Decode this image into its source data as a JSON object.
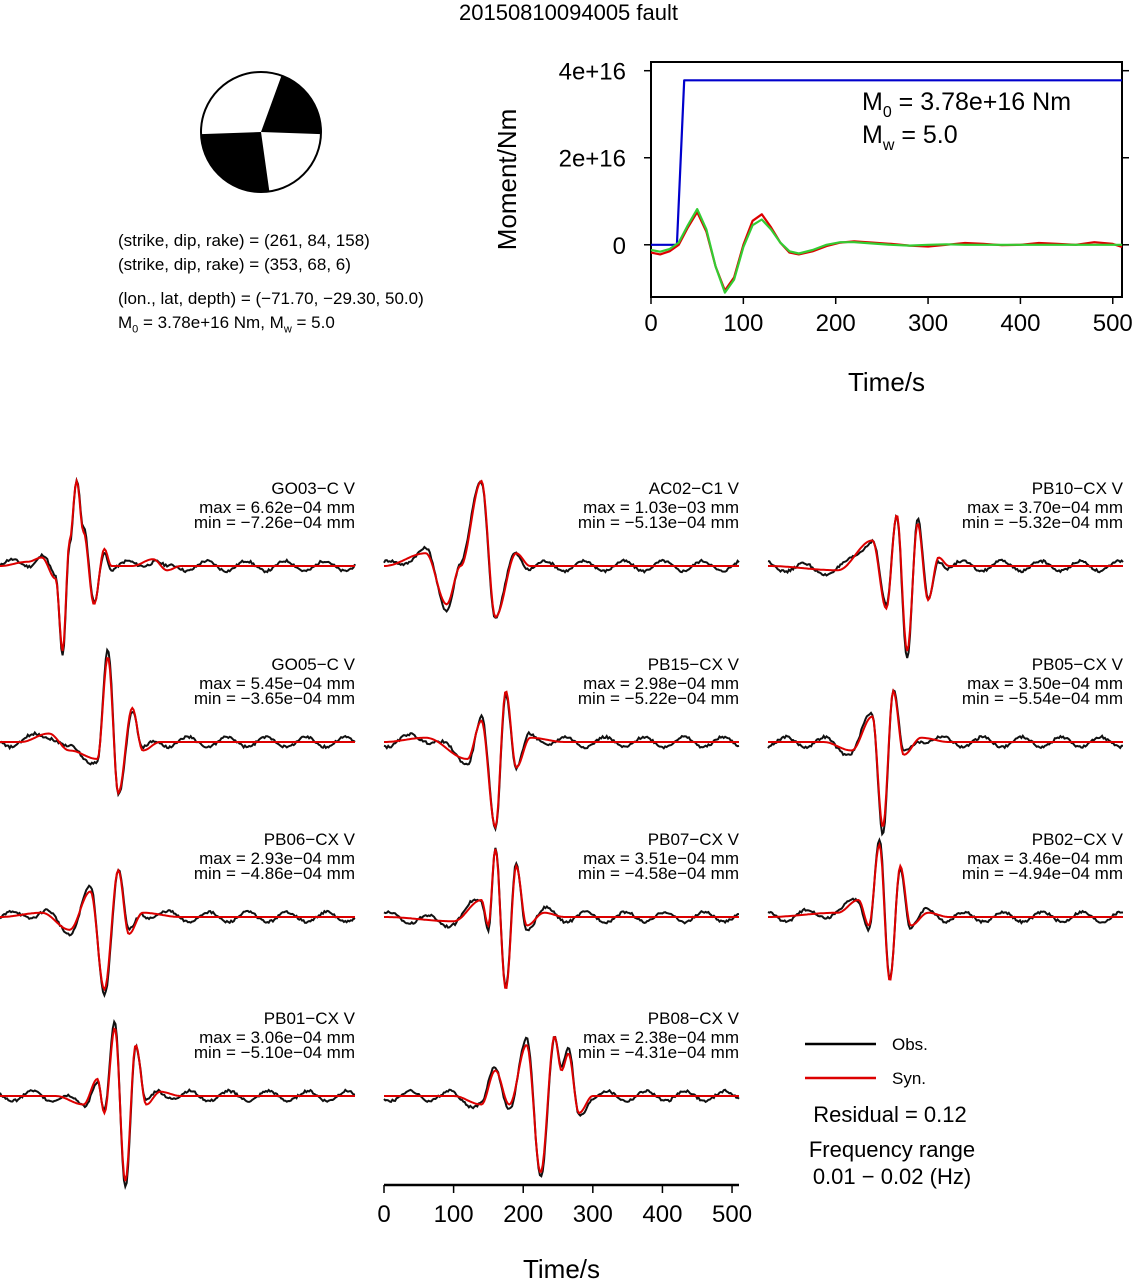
{
  "title": "20150810094005 fault",
  "mechanism": {
    "planes_label_1": "(strike, dip, rake) = (261, 84, 158)",
    "planes_label_2": "(strike, dip, rake) = (353, 68, 6)",
    "location_label": "(lon., lat, depth) = (−71.70, −29.30, 50.0)",
    "moment_label_m": "M",
    "moment_label_sub": "0",
    "moment_label_rest": " = 3.78e+16 Nm, M",
    "moment_label_sub2": "w",
    "moment_label_end": " = 5.0",
    "strike": 261,
    "dip": 84,
    "rake": 158,
    "strike2": 353,
    "dip2": 68,
    "rake2": 6,
    "lon": -71.7,
    "lat": -29.3,
    "depth": 50.0
  },
  "chart_data": [
    {
      "type": "line",
      "name": "moment-function",
      "xlabel": "Time/s",
      "ylabel": "Moment/Nm",
      "xlim": [
        0,
        510
      ],
      "ylim": [
        -1.2e+16,
        4.2e+16
      ],
      "xticks": [
        0,
        100,
        200,
        300,
        400,
        500
      ],
      "yticks": [
        0,
        2e+16,
        4e+16
      ],
      "ytick_labels": [
        "0",
        "2e+16",
        "4e+16"
      ],
      "annotation_M0_base": "M",
      "annotation_M0_sub": "0",
      "annotation_M0_value": " = 3.78e+16 Nm",
      "annotation_Mw_base": "M",
      "annotation_Mw_sub": "w",
      "annotation_Mw_value": " = 5.0",
      "series": [
        {
          "color": "#0000cc",
          "x": [
            0,
            28,
            36,
            510
          ],
          "y": [
            0,
            0,
            3.78e+16,
            3.78e+16
          ]
        },
        {
          "color": "#dd0000",
          "x": [
            0,
            10,
            20,
            30,
            40,
            50,
            60,
            70,
            80,
            90,
            100,
            110,
            120,
            130,
            140,
            150,
            160,
            175,
            190,
            205,
            220,
            240,
            260,
            280,
            300,
            320,
            340,
            360,
            380,
            400,
            420,
            440,
            460,
            480,
            500,
            510
          ],
          "y": [
            -1800000000000000.0,
            -2200000000000000.0,
            -1500000000000000.0,
            0.0,
            4000000000000000.0,
            7500000000000000.0,
            3000000000000000.0,
            -5000000000000000.0,
            -1.05e+16,
            -7500000000000000.0,
            0.0,
            5500000000000000.0,
            7000000000000000.0,
            4000000000000000.0,
            500000000000000.0,
            -1800000000000000.0,
            -2200000000000000.0,
            -1500000000000000.0,
            -300000000000000.0,
            500000000000000.0,
            800000000000000.0,
            500000000000000.0,
            200000000000000.0,
            -200000000000000.0,
            -400000000000000.0,
            0.0,
            400000000000000.0,
            200000000000000.0,
            -100000000000000.0,
            0.0,
            400000000000000.0,
            200000000000000.0,
            0.0,
            600000000000000.0,
            200000000000000.0,
            -500000000000000.0
          ]
        },
        {
          "color": "#33cc33",
          "x": [
            0,
            10,
            20,
            30,
            40,
            50,
            60,
            70,
            80,
            90,
            100,
            110,
            120,
            130,
            140,
            150,
            160,
            175,
            190,
            205,
            220,
            240,
            260,
            280,
            300,
            320,
            340,
            360,
            380,
            400,
            420,
            440,
            460,
            480,
            500,
            510
          ],
          "y": [
            -1200000000000000.0,
            -1600000000000000.0,
            -1000000000000000.0,
            500000000000000.0,
            4500000000000000.0,
            8200000000000000.0,
            3500000000000000.0,
            -5000000000000000.0,
            -1.1e+16,
            -8000000000000000.0,
            -500000000000000.0,
            4500000000000000.0,
            5800000000000000.0,
            3500000000000000.0,
            500000000000000.0,
            -1500000000000000.0,
            -2000000000000000.0,
            -1200000000000000.0,
            0.0,
            600000000000000.0,
            600000000000000.0,
            300000000000000.0,
            0.0,
            -200000000000000.0,
            0.0,
            100000000000000.0,
            0.0,
            0.0,
            0.0,
            0.0,
            0.0,
            0.0,
            0.0,
            0.0,
            0.0,
            0.0
          ]
        }
      ]
    },
    {
      "type": "line",
      "name": "waveform-panels",
      "xlabel": "Time/s",
      "xlim": [
        0,
        510
      ],
      "xticks": [
        0,
        100,
        200,
        300,
        400,
        500
      ],
      "legend_obs": "Obs.",
      "legend_syn": "Syn.",
      "residual_label": "Residual = 0.12",
      "frequency_title": "Frequency range",
      "frequency_value": "0.01 − 0.02 (Hz)",
      "stations": [
        {
          "name": "GO03−C V",
          "max_label": "max = 6.62e−04 mm",
          "min_label": "min = −7.26e−04 mm",
          "wave": [
            [
              40,
              0.05
            ],
            [
              60,
              0.1
            ],
            [
              80,
              -0.15
            ],
            [
              90,
              -1.0
            ],
            [
              100,
              0.3
            ],
            [
              110,
              1.0
            ],
            [
              120,
              0.4
            ],
            [
              135,
              -0.45
            ],
            [
              150,
              0.2
            ],
            [
              160,
              0.0
            ],
            [
              190,
              0.0
            ],
            [
              220,
              0.08
            ],
            [
              240,
              -0.05
            ],
            [
              260,
              0.0
            ]
          ]
        },
        {
          "name": "AC02−C1 V",
          "max_label": "max = 1.03e−03 mm",
          "min_label": "min = −5.13e−04 mm",
          "wave": [
            [
              60,
              0.15
            ],
            [
              90,
              -0.45
            ],
            [
              110,
              0.0
            ],
            [
              140,
              1.0
            ],
            [
              160,
              -0.6
            ],
            [
              190,
              0.15
            ],
            [
              210,
              0.0
            ],
            [
              260,
              0.0
            ]
          ]
        },
        {
          "name": "PB10−CX V",
          "max_label": "max = 3.70e−04 mm",
          "min_label": "min = −5.32e−04 mm",
          "wave": [
            [
              100,
              -0.05
            ],
            [
              150,
              0.3
            ],
            [
              170,
              -0.5
            ],
            [
              185,
              0.6
            ],
            [
              200,
              -1.0
            ],
            [
              215,
              0.5
            ],
            [
              230,
              -0.4
            ],
            [
              245,
              0.1
            ],
            [
              260,
              0.0
            ]
          ]
        },
        {
          "name": "GO05−C V",
          "max_label": "max = 5.45e−04 mm",
          "min_label": "min = −3.65e−04 mm",
          "wave": [
            [
              30,
              0.0
            ],
            [
              70,
              0.1
            ],
            [
              100,
              -0.1
            ],
            [
              140,
              -0.2
            ],
            [
              155,
              1.0
            ],
            [
              170,
              -0.6
            ],
            [
              190,
              0.4
            ],
            [
              205,
              -0.1
            ],
            [
              230,
              0.0
            ]
          ]
        },
        {
          "name": "PB15−CX V",
          "max_label": "max = 2.98e−04 mm",
          "min_label": "min = −5.22e−04 mm",
          "wave": [
            [
              60,
              0.05
            ],
            [
              120,
              -0.2
            ],
            [
              140,
              0.25
            ],
            [
              160,
              -1.0
            ],
            [
              175,
              0.6
            ],
            [
              190,
              -0.3
            ],
            [
              210,
              0.05
            ],
            [
              260,
              0.0
            ]
          ]
        },
        {
          "name": "PB05−CX V",
          "max_label": "max = 3.50e−04 mm",
          "min_label": "min = −5.54e−04 mm",
          "wave": [
            [
              80,
              0.0
            ],
            [
              120,
              -0.1
            ],
            [
              150,
              0.3
            ],
            [
              165,
              -1.0
            ],
            [
              180,
              0.6
            ],
            [
              195,
              -0.15
            ],
            [
              220,
              0.05
            ],
            [
              260,
              0.0
            ]
          ]
        },
        {
          "name": "PB06−CX V",
          "max_label": "max = 2.93e−04 mm",
          "min_label": "min = −4.86e−04 mm",
          "wave": [
            [
              60,
              0.05
            ],
            [
              100,
              -0.15
            ],
            [
              130,
              0.3
            ],
            [
              150,
              -0.85
            ],
            [
              170,
              0.55
            ],
            [
              185,
              -0.2
            ],
            [
              205,
              0.05
            ],
            [
              260,
              0.0
            ]
          ]
        },
        {
          "name": "PB07−CX V",
          "max_label": "max = 3.51e−04 mm",
          "min_label": "min = −4.58e−04 mm",
          "wave": [
            [
              100,
              -0.05
            ],
            [
              140,
              0.2
            ],
            [
              150,
              -0.1
            ],
            [
              160,
              0.8
            ],
            [
              175,
              -0.85
            ],
            [
              190,
              0.6
            ],
            [
              205,
              -0.1
            ],
            [
              230,
              0.05
            ],
            [
              260,
              0.0
            ]
          ]
        },
        {
          "name": "PB02−CX V",
          "max_label": "max = 3.46e−04 mm",
          "min_label": "min = −4.94e−04 mm",
          "wave": [
            [
              100,
              0.05
            ],
            [
              130,
              0.2
            ],
            [
              145,
              -0.1
            ],
            [
              160,
              0.85
            ],
            [
              175,
              -0.75
            ],
            [
              190,
              0.6
            ],
            [
              205,
              -0.1
            ],
            [
              230,
              0.05
            ],
            [
              260,
              0.0
            ]
          ]
        },
        {
          "name": "PB01−CX V",
          "max_label": "max = 3.06e−04 mm",
          "min_label": "min = −5.10e−04 mm",
          "wave": [
            [
              80,
              0.0
            ],
            [
              120,
              -0.1
            ],
            [
              140,
              0.2
            ],
            [
              150,
              -0.2
            ],
            [
              165,
              0.8
            ],
            [
              180,
              -1.0
            ],
            [
              195,
              0.6
            ],
            [
              210,
              -0.1
            ],
            [
              230,
              0.05
            ],
            [
              260,
              0.0
            ]
          ]
        },
        {
          "name": "PB08−CX V",
          "max_label": "max = 2.38e−04 mm",
          "min_label": "min = −4.31e−04 mm",
          "wave": [
            [
              100,
              0.0
            ],
            [
              140,
              -0.1
            ],
            [
              160,
              0.3
            ],
            [
              180,
              -0.1
            ],
            [
              205,
              0.6
            ],
            [
              225,
              -0.9
            ],
            [
              245,
              0.7
            ],
            [
              255,
              0.3
            ],
            [
              265,
              0.5
            ],
            [
              280,
              -0.2
            ],
            [
              300,
              0.0
            ]
          ]
        }
      ]
    }
  ]
}
